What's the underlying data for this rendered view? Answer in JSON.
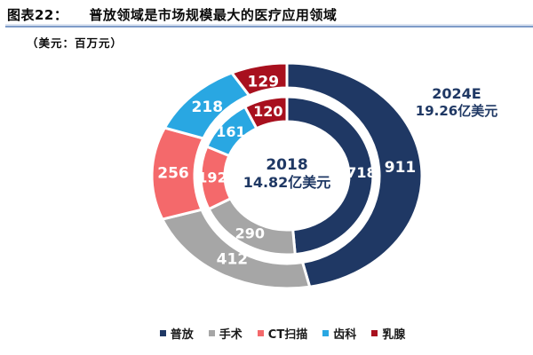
{
  "header": {
    "tag": "图表22：",
    "title": "普放领域是市场规模最大的医疗应用领域",
    "unit_note": "（美元：百万元）"
  },
  "chart_data": {
    "type": "pie",
    "subtype": "double-ring-donut",
    "title": "普放领域是市场规模最大的医疗应用领域",
    "unit": "百万美元",
    "categories": [
      "普放",
      "手术",
      "CT扫描",
      "齿科",
      "乳腺"
    ],
    "colors": [
      "#1F3864",
      "#A6A6A6",
      "#F4696B",
      "#29A7E2",
      "#A8101E"
    ],
    "series": [
      {
        "name": "2018",
        "ring": "inner",
        "total_label": "14.82亿美元",
        "values": [
          718,
          290,
          192,
          161,
          120
        ]
      },
      {
        "name": "2024E",
        "ring": "outer",
        "total_label": "19.26亿美元",
        "values": [
          911,
          412,
          256,
          218,
          129
        ]
      }
    ],
    "center_label": {
      "line1": "2018",
      "line2": "14.82亿美元"
    },
    "outer_label": {
      "line1": "2024E",
      "line2": "19.26亿美元"
    },
    "legend_position": "bottom",
    "start_angle": 0,
    "direction": "clockwise"
  }
}
